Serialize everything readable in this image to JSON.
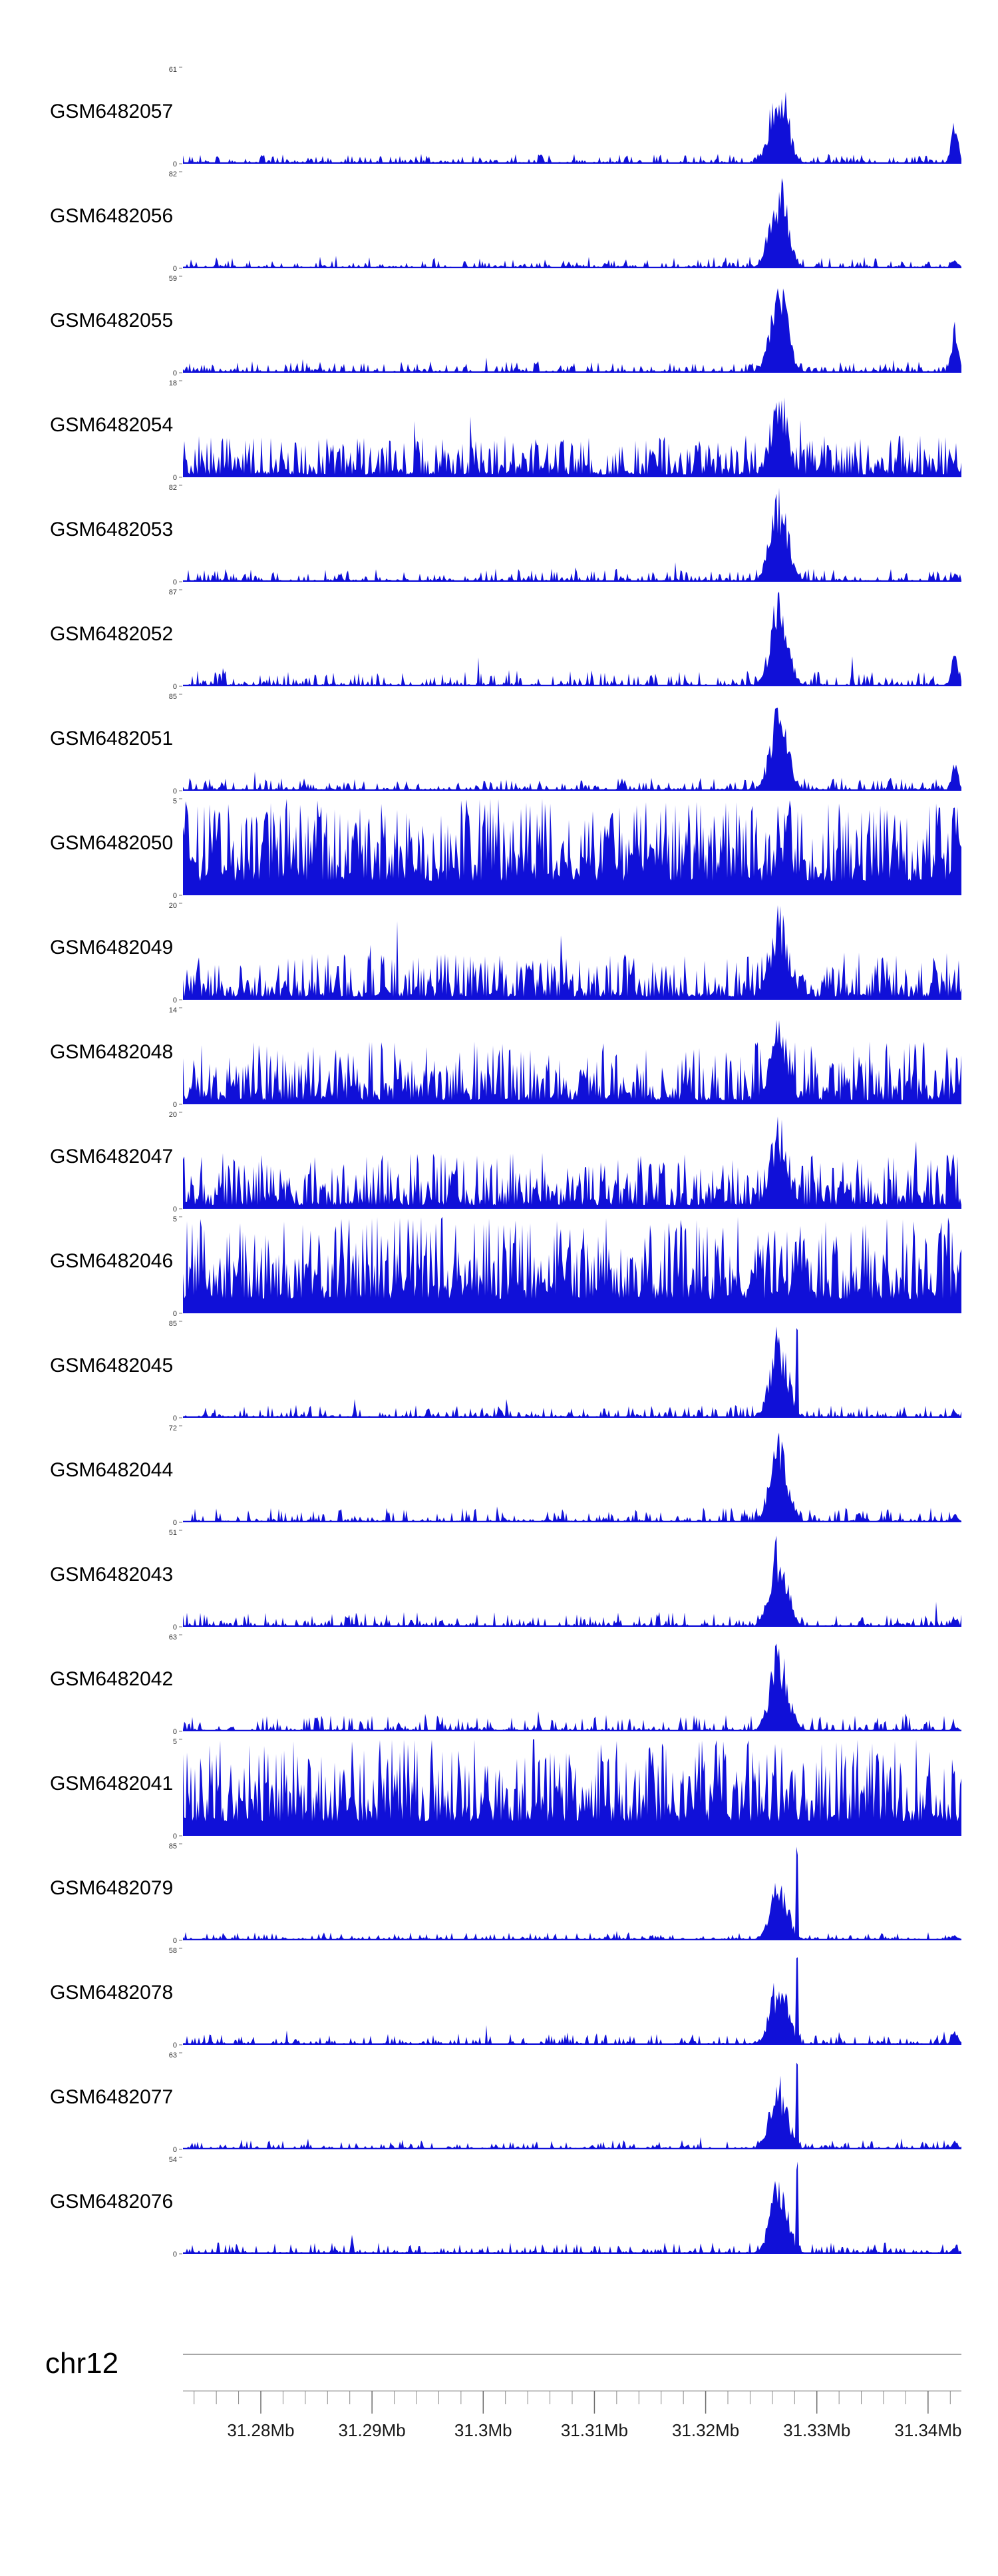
{
  "figure": {
    "background": "#ffffff",
    "kind": "genome-browser-coverage-tracks"
  },
  "chart_data": {
    "type": "area",
    "subtype": "genome-coverage-tracks",
    "title": "",
    "region": {
      "chrom": "chr12",
      "start_mb": 31.273,
      "end_mb": 31.343
    },
    "x_range_mb": [
      31.273,
      31.343
    ],
    "signal_color": "#1010d8",
    "peak_center_mb": 31.3266,
    "peak_sigma_mb": 0.0008,
    "needle_mb": 31.3282,
    "edge_spike_mb": 31.3424,
    "y_baseline_label": "0",
    "x_axis": {
      "units": "Mb",
      "major_ticks_mb": [
        31.28,
        31.29,
        31.3,
        31.31,
        31.32,
        31.33,
        31.34
      ],
      "tick_labels": [
        "31.28Mb",
        "31.29Mb",
        "31.3Mb",
        "31.31Mb",
        "31.32Mb",
        "31.33Mb",
        "31.34Mb"
      ],
      "minor_tick_step_mb": 0.002,
      "minor_tick_start_mb": 31.274,
      "minor_tick_end_mb": 31.342
    },
    "tracks": [
      {
        "label": "GSM6482057",
        "ymax": 61,
        "profile": "peaked",
        "noise": 0.06,
        "peak": 1.0,
        "needle": 0,
        "edge_spike": 0.5
      },
      {
        "label": "GSM6482056",
        "ymax": 82,
        "profile": "peaked",
        "noise": 0.07,
        "peak": 1.0,
        "needle": 0,
        "edge_spike": 0.12
      },
      {
        "label": "GSM6482055",
        "ymax": 59,
        "profile": "peaked",
        "noise": 0.07,
        "peak": 1.0,
        "needle": 0,
        "edge_spike": 0.55
      },
      {
        "label": "GSM6482054",
        "ymax": 18,
        "profile": "peaked",
        "noise": 0.3,
        "peak": 1.0,
        "needle": 0,
        "edge_spike": 0.25
      },
      {
        "label": "GSM6482053",
        "ymax": 82,
        "profile": "peaked",
        "noise": 0.08,
        "peak": 1.0,
        "needle": 0,
        "edge_spike": 0.1
      },
      {
        "label": "GSM6482052",
        "ymax": 87,
        "profile": "peaked",
        "noise": 0.1,
        "peak": 1.0,
        "needle": 0,
        "edge_spike": 0.42
      },
      {
        "label": "GSM6482051",
        "ymax": 85,
        "profile": "peaked",
        "noise": 0.08,
        "peak": 1.0,
        "needle": 0,
        "edge_spike": 0.32
      },
      {
        "label": "GSM6482050",
        "ymax": 5,
        "profile": "input",
        "noise": 1.0,
        "peak": 0,
        "needle": 0,
        "edge_spike": 0
      },
      {
        "label": "GSM6482049",
        "ymax": 20,
        "profile": "peaked",
        "noise": 0.34,
        "peak": 1.0,
        "needle": 0,
        "edge_spike": 0.12
      },
      {
        "label": "GSM6482048",
        "ymax": 14,
        "profile": "peaked",
        "noise": 0.45,
        "peak": 0.95,
        "needle": 0,
        "edge_spike": 0.15
      },
      {
        "label": "GSM6482047",
        "ymax": 20,
        "profile": "peaked",
        "noise": 0.4,
        "peak": 1.0,
        "needle": 0,
        "edge_spike": 0.15
      },
      {
        "label": "GSM6482046",
        "ymax": 5,
        "profile": "input",
        "noise": 1.0,
        "peak": 0,
        "needle": 0,
        "edge_spike": 0
      },
      {
        "label": "GSM6482045",
        "ymax": 85,
        "profile": "peaked",
        "noise": 0.08,
        "peak": 1.0,
        "needle": 1.0,
        "edge_spike": 0.08
      },
      {
        "label": "GSM6482044",
        "ymax": 72,
        "profile": "peaked",
        "noise": 0.09,
        "peak": 1.0,
        "needle": 0,
        "edge_spike": 0.1
      },
      {
        "label": "GSM6482043",
        "ymax": 51,
        "profile": "peaked",
        "noise": 0.09,
        "peak": 1.0,
        "needle": 0,
        "edge_spike": 0.12
      },
      {
        "label": "GSM6482042",
        "ymax": 63,
        "profile": "peaked",
        "noise": 0.1,
        "peak": 1.0,
        "needle": 0,
        "edge_spike": 0.06
      },
      {
        "label": "GSM6482041",
        "ymax": 5,
        "profile": "input",
        "noise": 1.0,
        "peak": 0,
        "needle": 0,
        "edge_spike": 0
      },
      {
        "label": "GSM6482079",
        "ymax": 85,
        "profile": "peaked",
        "noise": 0.05,
        "peak": 0.72,
        "needle": 1.0,
        "edge_spike": 0.06
      },
      {
        "label": "GSM6482078",
        "ymax": 58,
        "profile": "peaked",
        "noise": 0.07,
        "peak": 0.78,
        "needle": 1.0,
        "edge_spike": 0.16
      },
      {
        "label": "GSM6482077",
        "ymax": 63,
        "profile": "peaked",
        "noise": 0.06,
        "peak": 0.78,
        "needle": 1.0,
        "edge_spike": 0.1
      },
      {
        "label": "GSM6482076",
        "ymax": 54,
        "profile": "peaked",
        "noise": 0.07,
        "peak": 0.85,
        "needle": 1.0,
        "edge_spike": 0.08
      }
    ]
  }
}
